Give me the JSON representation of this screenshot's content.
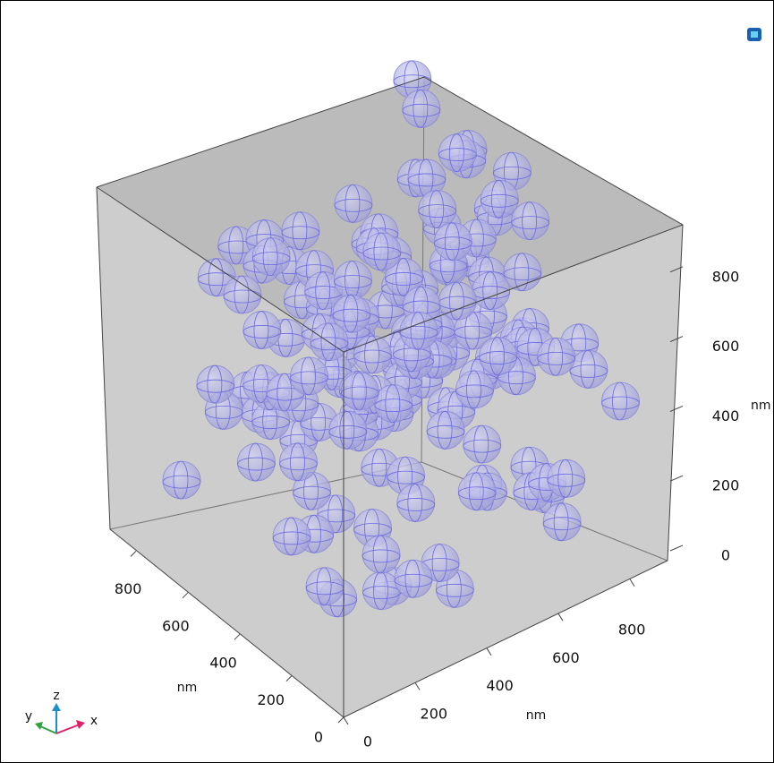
{
  "axes": {
    "x": {
      "ticks": [
        0,
        200,
        400,
        600,
        800
      ],
      "unit": "nm"
    },
    "y": {
      "ticks": [
        0,
        200,
        400,
        600,
        800
      ],
      "unit": "nm"
    },
    "z": {
      "ticks": [
        0,
        200,
        400,
        600,
        800
      ],
      "unit": "nm"
    }
  },
  "triad": {
    "x": "x",
    "y": "y",
    "z": "z"
  }
}
